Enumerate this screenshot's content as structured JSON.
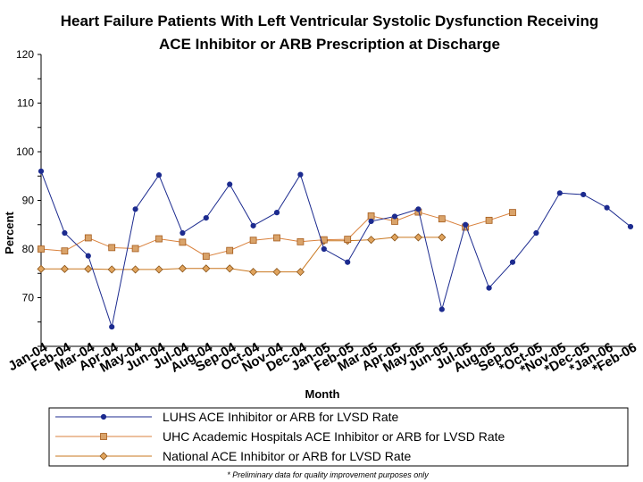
{
  "chart_data": {
    "type": "line",
    "title_lines": [
      "Heart Failure Patients With Left Ventricular Systolic Dysfunction Receiving",
      "ACE Inhibitor or ARB Prescription at Discharge"
    ],
    "xlabel": "Month",
    "ylabel": "Percent",
    "ylim": [
      60,
      120
    ],
    "yticks": [
      70,
      80,
      90,
      100,
      110,
      120
    ],
    "grid": false,
    "legend_position": "bottom",
    "footnote": "* Preliminary data for quality improvement purposes only",
    "categories": [
      "Jan-04",
      "Feb-04",
      "Mar-04",
      "Apr-04",
      "May-04",
      "Jun-04",
      "Jul-04",
      "Aug-04",
      "Sep-04",
      "Oct-04",
      "Nov-04",
      "Dec-04",
      "Jan-05",
      "Feb-05",
      "Mar-05",
      "Apr-05",
      "May-05",
      "Jun-05",
      "Jul-05",
      "Aug-05",
      "Sep-05",
      "*Oct-05",
      "*Nov-05",
      "*Dec-05",
      "*Jan-06",
      "*Feb-06"
    ],
    "series": [
      {
        "name": "LUHS ACE Inhibitor or ARB for LVSD Rate",
        "color": "#1c2b8f",
        "marker": "circle",
        "values": [
          96.0,
          83.3,
          78.6,
          64.0,
          88.2,
          95.2,
          83.3,
          86.4,
          93.3,
          84.8,
          87.5,
          95.3,
          80.0,
          77.3,
          85.7,
          86.7,
          88.2,
          67.6,
          85.0,
          72.0,
          77.3,
          83.3,
          91.5,
          91.2,
          88.5,
          84.6
        ]
      },
      {
        "name": "UHC Academic Hospitals ACE Inhibitor or ARB for LVSD Rate",
        "color": "#d9813c",
        "marker": "square",
        "values": [
          80.0,
          79.6,
          82.3,
          80.3,
          80.1,
          82.1,
          81.4,
          78.5,
          79.7,
          81.8,
          82.3,
          81.5,
          81.9,
          82.0,
          86.8,
          85.7,
          87.6,
          86.2,
          84.5,
          85.9,
          87.5,
          null,
          null,
          null,
          null,
          null
        ]
      },
      {
        "name": "National ACE Inhibitor or ARB for LVSD Rate",
        "color": "#c9771f",
        "marker": "diamond",
        "values": [
          75.9,
          75.9,
          75.9,
          75.8,
          75.8,
          75.8,
          76.0,
          76.0,
          76.0,
          75.3,
          75.3,
          75.3,
          81.7,
          81.7,
          81.9,
          82.4,
          82.4,
          82.4,
          null,
          null,
          null,
          null,
          null,
          null,
          null,
          null
        ]
      }
    ]
  }
}
